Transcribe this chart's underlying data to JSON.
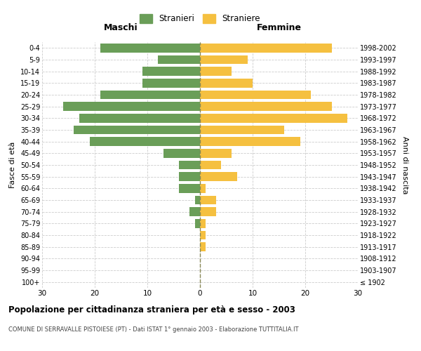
{
  "age_groups": [
    "100+",
    "95-99",
    "90-94",
    "85-89",
    "80-84",
    "75-79",
    "70-74",
    "65-69",
    "60-64",
    "55-59",
    "50-54",
    "45-49",
    "40-44",
    "35-39",
    "30-34",
    "25-29",
    "20-24",
    "15-19",
    "10-14",
    "5-9",
    "0-4"
  ],
  "birth_years": [
    "≤ 1902",
    "1903-1907",
    "1908-1912",
    "1913-1917",
    "1918-1922",
    "1923-1927",
    "1928-1932",
    "1933-1937",
    "1938-1942",
    "1943-1947",
    "1948-1952",
    "1953-1957",
    "1958-1962",
    "1963-1967",
    "1968-1972",
    "1973-1977",
    "1978-1982",
    "1983-1987",
    "1988-1992",
    "1993-1997",
    "1998-2002"
  ],
  "males": [
    0,
    0,
    0,
    0,
    0,
    1,
    2,
    1,
    4,
    4,
    4,
    7,
    21,
    24,
    23,
    26,
    19,
    11,
    11,
    8,
    19
  ],
  "females": [
    0,
    0,
    0,
    1,
    1,
    1,
    3,
    3,
    1,
    7,
    4,
    6,
    19,
    16,
    28,
    25,
    21,
    10,
    6,
    9,
    25
  ],
  "male_color": "#6a9e58",
  "female_color": "#f5c040",
  "background_color": "#ffffff",
  "grid_color": "#cccccc",
  "title": "Popolazione per cittadinanza straniera per età e sesso - 2003",
  "subtitle": "COMUNE DI SERRAVALLE PISTOIESE (PT) - Dati ISTAT 1° gennaio 2003 - Elaborazione TUTTITALIA.IT",
  "ylabel_left": "Fasce di età",
  "ylabel_right": "Anni di nascita",
  "header_left": "Maschi",
  "header_right": "Femmine",
  "legend_male": "Stranieri",
  "legend_female": "Straniere",
  "xlim": 30,
  "dashed_line_color": "#888855"
}
